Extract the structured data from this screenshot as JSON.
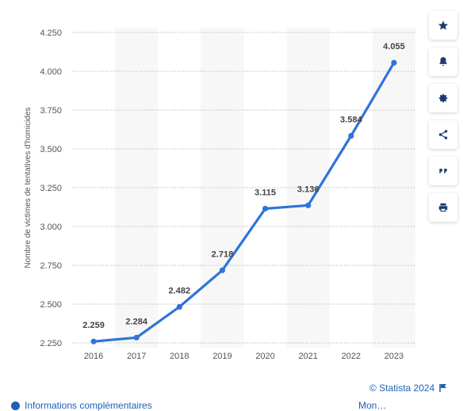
{
  "chart_data": {
    "type": "line",
    "categories": [
      "2016",
      "2017",
      "2018",
      "2019",
      "2020",
      "2021",
      "2022",
      "2023"
    ],
    "series": [
      {
        "values": [
          2259,
          2284,
          2482,
          2718,
          3115,
          3136,
          3584,
          4055
        ]
      }
    ],
    "data_labels": [
      "2.259",
      "2.284",
      "2.482",
      "2.718",
      "3.115",
      "3.136",
      "3.584",
      "4.055"
    ],
    "ylabel": "Nombre de victimes de tentatives d'homicides",
    "xlabel": "",
    "ylim": [
      2250,
      4250
    ],
    "yticks": [
      4250,
      4000,
      3750,
      3500,
      3250,
      3000,
      2750,
      2500,
      2250
    ],
    "ytick_labels": [
      "4.250",
      "4.000",
      "3.750",
      "3.500",
      "3.250",
      "3.000",
      "2.750",
      "2.500",
      "2.250"
    ],
    "grid": true,
    "line_color": "#2f74d9"
  },
  "toolbar": {
    "items": [
      {
        "icon": "star-icon"
      },
      {
        "icon": "bell-icon"
      },
      {
        "icon": "gear-icon"
      },
      {
        "icon": "share-icon"
      },
      {
        "icon": "quote-icon"
      },
      {
        "icon": "print-icon"
      }
    ]
  },
  "footer": {
    "credit": "© Statista 2024",
    "more_info": "Informations complémentaires",
    "right_link": "Mon…"
  }
}
